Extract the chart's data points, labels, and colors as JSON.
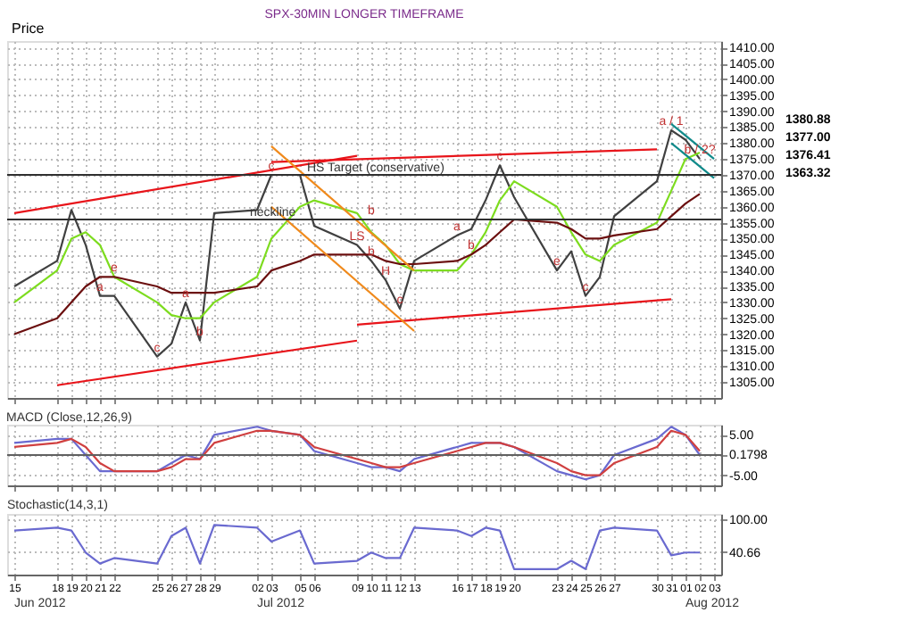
{
  "chart_data": [
    {
      "type": "line",
      "title": "SPX-30MIN LONGER TIMEFRAME",
      "ylabel": "Price",
      "x": [
        "2012-06-15",
        "2012-06-18",
        "2012-06-19",
        "2012-06-20",
        "2012-06-21",
        "2012-06-22",
        "2012-06-25",
        "2012-06-26",
        "2012-06-27",
        "2012-06-28",
        "2012-06-29",
        "2012-07-02",
        "2012-07-03",
        "2012-07-05",
        "2012-07-06",
        "2012-07-09",
        "2012-07-10",
        "2012-07-11",
        "2012-07-12",
        "2012-07-13",
        "2012-07-16",
        "2012-07-17",
        "2012-07-18",
        "2012-07-19",
        "2012-07-20",
        "2012-07-23",
        "2012-07-24",
        "2012-07-25",
        "2012-07-26",
        "2012-07-27",
        "2012-07-30",
        "2012-07-31",
        "2012-08-01",
        "2012-08-02"
      ],
      "series": [
        {
          "color": "#404040",
          "values": [
            1335,
            1343,
            1359,
            1348,
            1332,
            1332,
            1313,
            1317,
            1330,
            1318,
            1358,
            1359,
            1370,
            1370,
            1354,
            1348,
            1343,
            1337,
            1328,
            1343,
            1351,
            1353,
            1362,
            1373,
            1363,
            1340,
            1346,
            1332,
            1338,
            1357,
            1368,
            1384,
            1381,
            1375
          ]
        },
        {
          "color": "#7ddc1f",
          "values": [
            1330,
            1340,
            1350,
            1352,
            1348,
            1338,
            1330,
            1326,
            1325,
            1325,
            1330,
            1338,
            1350,
            1360,
            1362,
            1358,
            1352,
            1348,
            1342,
            1340,
            1340,
            1345,
            1352,
            1362,
            1368,
            1360,
            1352,
            1345,
            1343,
            1348,
            1355,
            1365,
            1375,
            1377
          ]
        },
        {
          "color": "#6b0f0f",
          "values": [
            1320,
            1325,
            1330,
            1335,
            1338,
            1338,
            1335,
            1333,
            1333,
            1333,
            1333,
            1335,
            1340,
            1343,
            1345,
            1345,
            1345,
            1343,
            1342,
            1342,
            1343,
            1345,
            1348,
            1352,
            1356,
            1355,
            1353,
            1350,
            1350,
            1351,
            1353,
            1357,
            1361,
            1364
          ]
        },
        {
          "color": "#e8141a",
          "x": [
            "2012-06-15",
            "2012-07-09"
          ],
          "values": [
            1358,
            1376
          ]
        },
        {
          "color": "#e8141a",
          "x": [
            "2012-07-03",
            "2012-07-30"
          ],
          "values": [
            1374,
            1378
          ]
        },
        {
          "color": "#e8141a",
          "x": [
            "2012-06-18",
            "2012-07-09"
          ],
          "values": [
            1304,
            1318
          ]
        },
        {
          "color": "#e8141a",
          "x": [
            "2012-07-09",
            "2012-07-31"
          ],
          "values": [
            1323,
            1331
          ]
        },
        {
          "color": "#f08a1c",
          "x": [
            "2012-07-03",
            "2012-07-13"
          ],
          "values": [
            1379,
            1340
          ]
        },
        {
          "color": "#f08a1c",
          "x": [
            "2012-07-03",
            "2012-07-13"
          ],
          "values": [
            1360,
            1321
          ]
        },
        {
          "color": "#108a8a",
          "x": [
            "2012-07-31",
            "2012-08-03"
          ],
          "values": [
            1386,
            1375
          ]
        },
        {
          "color": "#108a8a",
          "x": [
            "2012-07-31",
            "2012-08-03"
          ],
          "values": [
            1380,
            1369
          ]
        }
      ],
      "ylim": [
        1300,
        1412
      ],
      "yticks": [
        {
          "value": 1305,
          "label": "1305.00"
        },
        {
          "value": 1310,
          "label": "1310.00"
        },
        {
          "value": 1315,
          "label": "1315.00"
        },
        {
          "value": 1320,
          "label": "1320.00"
        },
        {
          "value": 1325,
          "label": "1325.00"
        },
        {
          "value": 1330,
          "label": "1330.00"
        },
        {
          "value": 1335,
          "label": "1335.00"
        },
        {
          "value": 1340,
          "label": "1340.00"
        },
        {
          "value": 1345,
          "label": "1345.00"
        },
        {
          "value": 1350,
          "label": "1350.00"
        },
        {
          "value": 1355,
          "label": "1355.00"
        },
        {
          "value": 1360,
          "label": "1360.00"
        },
        {
          "value": 1365,
          "label": "1365.00"
        },
        {
          "value": 1370,
          "label": "1370.00"
        },
        {
          "value": 1375,
          "label": "1375.00"
        },
        {
          "value": 1380,
          "label": "1380.00"
        },
        {
          "value": 1385,
          "label": "1385.00"
        },
        {
          "value": 1390,
          "label": "1390.00"
        },
        {
          "value": 1395,
          "label": "1395.00"
        },
        {
          "value": 1400,
          "label": "1400.00"
        },
        {
          "value": 1405,
          "label": "1405.00"
        },
        {
          "value": 1410,
          "label": "1410.00"
        }
      ],
      "xlim": [
        "2012-06-14T12:00",
        "2012-08-03T12:00"
      ],
      "xticks": [
        "2012-06-15",
        "2012-06-18",
        "2012-06-19",
        "2012-06-20",
        "2012-06-21",
        "2012-06-22",
        "2012-06-25",
        "2012-06-26",
        "2012-06-27",
        "2012-06-28",
        "2012-06-29",
        "2012-07-02",
        "2012-07-03",
        "2012-07-05",
        "2012-07-06",
        "2012-07-09",
        "2012-07-10",
        "2012-07-11",
        "2012-07-12",
        "2012-07-13",
        "2012-07-16",
        "2012-07-17",
        "2012-07-18",
        "2012-07-19",
        "2012-07-20",
        "2012-07-23",
        "2012-07-24",
        "2012-07-25",
        "2012-07-26",
        "2012-07-27",
        "2012-07-30",
        "2012-07-31",
        "2012-08-01",
        "2012-08-02",
        "2012-08-03"
      ],
      "tick_labels": "y",
      "grid": true,
      "ref_lines": [
        {
          "axis": "y",
          "value": 1370,
          "label": "HS Target (conservative)",
          "color": "#303030"
        },
        {
          "axis": "y",
          "value": 1356,
          "label": "neckline",
          "color": "#303030"
        }
      ],
      "annotations": [
        {
          "text": "a",
          "x": "2012-06-21",
          "y": 1332
        },
        {
          "text": "e",
          "x": "2012-06-22",
          "y": 1338
        },
        {
          "text": "c",
          "x": "2012-06-25",
          "y": 1313
        },
        {
          "text": "a",
          "x": "2012-06-27",
          "y": 1330
        },
        {
          "text": "b",
          "x": "2012-06-28",
          "y": 1318
        },
        {
          "text": "c",
          "x": "2012-07-03",
          "y": 1370
        },
        {
          "text": "LS",
          "x": "2012-07-09",
          "y": 1348
        },
        {
          "text": "b",
          "x": "2012-07-10",
          "y": 1343
        },
        {
          "text": "b",
          "x": "2012-07-10",
          "y": 1356
        },
        {
          "text": "H",
          "x": "2012-07-11",
          "y": 1337
        },
        {
          "text": "c",
          "x": "2012-07-12",
          "y": 1328
        },
        {
          "text": "a",
          "x": "2012-07-16",
          "y": 1351
        },
        {
          "text": "b",
          "x": "2012-07-17",
          "y": 1345
        },
        {
          "text": "c",
          "x": "2012-07-19",
          "y": 1373
        },
        {
          "text": "e",
          "x": "2012-07-23",
          "y": 1340
        },
        {
          "text": "c",
          "x": "2012-07-25",
          "y": 1332
        },
        {
          "text": "a / 1",
          "x": "2012-07-31",
          "y": 1384
        },
        {
          "text": "b / 2?",
          "x": "2012-08-02",
          "y": 1375
        },
        "1380.88",
        "1377.00",
        "1376.41",
        "1363.32"
      ]
    },
    {
      "type": "line",
      "title": "MACD (Close,12,26,9)",
      "x": [
        "2012-06-15",
        "2012-06-18",
        "2012-06-19",
        "2012-06-20",
        "2012-06-21",
        "2012-06-22",
        "2012-06-25",
        "2012-06-26",
        "2012-06-27",
        "2012-06-28",
        "2012-06-29",
        "2012-07-02",
        "2012-07-03",
        "2012-07-05",
        "2012-07-06",
        "2012-07-09",
        "2012-07-10",
        "2012-07-11",
        "2012-07-12",
        "2012-07-13",
        "2012-07-16",
        "2012-07-17",
        "2012-07-18",
        "2012-07-19",
        "2012-07-20",
        "2012-07-23",
        "2012-07-24",
        "2012-07-25",
        "2012-07-26",
        "2012-07-27",
        "2012-07-30",
        "2012-07-31",
        "2012-08-01",
        "2012-08-02"
      ],
      "series": [
        {
          "color": "#6a6ad0",
          "values": [
            3,
            4,
            4,
            0,
            -4,
            -4,
            -4,
            -2,
            0,
            -1,
            5,
            7,
            6,
            5,
            1,
            -2,
            -3,
            -3,
            -4,
            -1,
            2,
            3,
            3,
            3,
            2,
            -4,
            -5,
            -6,
            -5,
            0,
            4,
            7,
            5,
            0
          ]
        },
        {
          "color": "#d04040",
          "values": [
            2,
            3,
            4,
            2,
            -2,
            -4,
            -4,
            -3,
            -1,
            -1,
            3,
            6,
            6,
            5,
            2,
            -1,
            -2,
            -3,
            -3,
            -2,
            1,
            2,
            3,
            3,
            2,
            -2,
            -4,
            -5,
            -5,
            -2,
            2,
            6,
            5,
            1
          ]
        }
      ],
      "ylim": [
        -7.5,
        7.5
      ],
      "yticks": [
        {
          "value": 5,
          "label": "5.00"
        },
        {
          "value": 0.1798,
          "label": "0.1798"
        },
        {
          "value": -5,
          "label": "-5.00"
        }
      ],
      "xlim": [
        "2012-06-14T12:00",
        "2012-08-03T12:00"
      ],
      "xticks": [
        "2012-06-15",
        "2012-06-18",
        "2012-06-19",
        "2012-06-20",
        "2012-06-21",
        "2012-06-22",
        "2012-06-25",
        "2012-06-26",
        "2012-06-27",
        "2012-06-28",
        "2012-06-29",
        "2012-07-02",
        "2012-07-03",
        "2012-07-05",
        "2012-07-06",
        "2012-07-09",
        "2012-07-10",
        "2012-07-11",
        "2012-07-12",
        "2012-07-13",
        "2012-07-16",
        "2012-07-17",
        "2012-07-18",
        "2012-07-19",
        "2012-07-20",
        "2012-07-23",
        "2012-07-24",
        "2012-07-25",
        "2012-07-26",
        "2012-07-27",
        "2012-07-30",
        "2012-07-31",
        "2012-08-01",
        "2012-08-02",
        "2012-08-03"
      ],
      "tick_labels": "y",
      "grid": true,
      "ref_lines": [
        {
          "axis": "y",
          "value": 0,
          "color": "#606060"
        }
      ]
    },
    {
      "type": "line",
      "title": "Stochastic(14,3,1)",
      "x": [
        "2012-06-15",
        "2012-06-18",
        "2012-06-19",
        "2012-06-20",
        "2012-06-21",
        "2012-06-22",
        "2012-06-25",
        "2012-06-26",
        "2012-06-27",
        "2012-06-28",
        "2012-06-29",
        "2012-07-02",
        "2012-07-03",
        "2012-07-05",
        "2012-07-06",
        "2012-07-09",
        "2012-07-10",
        "2012-07-11",
        "2012-07-12",
        "2012-07-13",
        "2012-07-16",
        "2012-07-17",
        "2012-07-18",
        "2012-07-19",
        "2012-07-20",
        "2012-07-23",
        "2012-07-24",
        "2012-07-25",
        "2012-07-26",
        "2012-07-27",
        "2012-07-30",
        "2012-07-31",
        "2012-08-01",
        "2012-08-02"
      ],
      "series": [
        {
          "color": "#6a6ad0",
          "values": [
            80,
            85,
            80,
            40,
            20,
            30,
            20,
            70,
            85,
            20,
            90,
            85,
            60,
            80,
            20,
            25,
            40,
            30,
            30,
            85,
            80,
            70,
            85,
            80,
            10,
            10,
            25,
            10,
            80,
            85,
            80,
            35,
            40,
            40
          ]
        }
      ],
      "ylim": [
        0,
        110
      ],
      "yticks": [
        {
          "value": 100,
          "label": "100.00"
        },
        {
          "value": 40.66,
          "label": "40.66"
        }
      ],
      "xlim": [
        "2012-06-14T12:00",
        "2012-08-03T12:00"
      ],
      "xticks": [
        {
          "value": "2012-06-15",
          "label": "15"
        },
        {
          "value": "2012-06-18",
          "label": "18"
        },
        {
          "value": "2012-06-19",
          "label": "19"
        },
        {
          "value": "2012-06-20",
          "label": "20"
        },
        {
          "value": "2012-06-21",
          "label": "21"
        },
        {
          "value": "2012-06-22",
          "label": "22"
        },
        {
          "value": "2012-06-25",
          "label": "25"
        },
        {
          "value": "2012-06-26",
          "label": "26"
        },
        {
          "value": "2012-06-27",
          "label": "27"
        },
        {
          "value": "2012-06-28",
          "label": "28"
        },
        {
          "value": "2012-06-29",
          "label": "29"
        },
        {
          "value": "2012-07-02",
          "label": "02"
        },
        {
          "value": "2012-07-03",
          "label": "03"
        },
        {
          "value": "2012-07-05",
          "label": "05"
        },
        {
          "value": "2012-07-06",
          "label": "06"
        },
        {
          "value": "2012-07-09",
          "label": "09"
        },
        {
          "value": "2012-07-10",
          "label": "10"
        },
        {
          "value": "2012-07-11",
          "label": "11"
        },
        {
          "value": "2012-07-12",
          "label": "12"
        },
        {
          "value": "2012-07-13",
          "label": "13"
        },
        {
          "value": "2012-07-16",
          "label": "16"
        },
        {
          "value": "2012-07-17",
          "label": "17"
        },
        {
          "value": "2012-07-18",
          "label": "18"
        },
        {
          "value": "2012-07-19",
          "label": "19"
        },
        {
          "value": "2012-07-20",
          "label": "20"
        },
        {
          "value": "2012-07-23",
          "label": "23"
        },
        {
          "value": "2012-07-24",
          "label": "24"
        },
        {
          "value": "2012-07-25",
          "label": "25"
        },
        {
          "value": "2012-07-26",
          "label": "26"
        },
        {
          "value": "2012-07-27",
          "label": "27"
        },
        {
          "value": "2012-07-30",
          "label": "30"
        },
        {
          "value": "2012-07-31",
          "label": "31"
        },
        {
          "value": "2012-08-01",
          "label": "01"
        },
        {
          "value": "2012-08-02",
          "label": "02"
        },
        {
          "value": "2012-08-03",
          "label": "03"
        }
      ],
      "grid": true,
      "annotations": [
        "Jun 2012",
        "Jul 2012",
        "Aug 2012"
      ]
    }
  ]
}
